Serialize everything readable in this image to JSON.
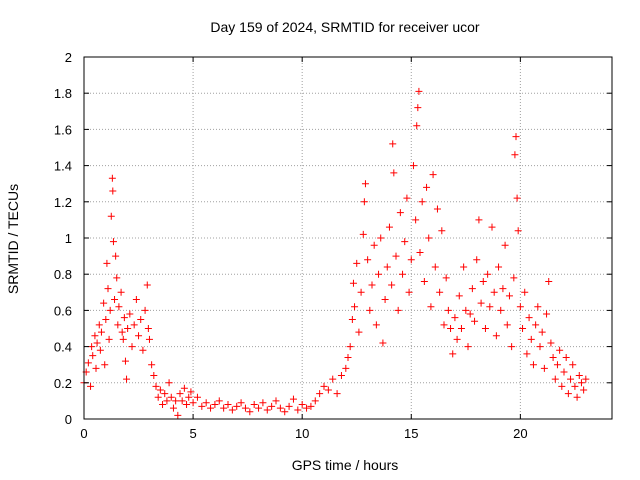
{
  "chart_data": {
    "type": "scatter",
    "title": "Day 159 of 2024, SRMTID for receiver ucor",
    "xlabel": "GPS time / hours",
    "ylabel": "SRMTID / TECUs",
    "xlim": [
      0,
      24.2
    ],
    "ylim": [
      0,
      2
    ],
    "x_ticks": [
      {
        "value": 0,
        "label": "0"
      },
      {
        "value": 5,
        "label": "5"
      },
      {
        "value": 10,
        "label": "10"
      },
      {
        "value": 15,
        "label": "15"
      },
      {
        "value": 20,
        "label": "20"
      }
    ],
    "y_ticks": [
      {
        "value": 0,
        "label": "0"
      },
      {
        "value": 0.2,
        "label": "0.2"
      },
      {
        "value": 0.4,
        "label": "0.4"
      },
      {
        "value": 0.6,
        "label": "0.6"
      },
      {
        "value": 0.8,
        "label": "0.8"
      },
      {
        "value": 1,
        "label": "1"
      },
      {
        "value": 1.2,
        "label": "1.2"
      },
      {
        "value": 1.4,
        "label": "1.4"
      },
      {
        "value": 1.6,
        "label": "1.6"
      },
      {
        "value": 1.8,
        "label": "1.8"
      },
      {
        "value": 2,
        "label": "2"
      }
    ],
    "grid": true,
    "marker": "+",
    "color": "#ff0000",
    "series": [
      {
        "name": "SRMTID",
        "points": [
          [
            0.0,
            0.2
          ],
          [
            0.1,
            0.26
          ],
          [
            0.2,
            0.31
          ],
          [
            0.3,
            0.18
          ],
          [
            0.35,
            0.4
          ],
          [
            0.4,
            0.35
          ],
          [
            0.5,
            0.46
          ],
          [
            0.55,
            0.28
          ],
          [
            0.6,
            0.42
          ],
          [
            0.7,
            0.52
          ],
          [
            0.75,
            0.38
          ],
          [
            0.8,
            0.48
          ],
          [
            0.9,
            0.64
          ],
          [
            0.95,
            0.3
          ],
          [
            1.0,
            0.55
          ],
          [
            1.05,
            0.86
          ],
          [
            1.1,
            0.72
          ],
          [
            1.15,
            0.44
          ],
          [
            1.2,
            0.6
          ],
          [
            1.25,
            1.12
          ],
          [
            1.3,
            1.33
          ],
          [
            1.32,
            1.26
          ],
          [
            1.35,
            0.98
          ],
          [
            1.4,
            0.66
          ],
          [
            1.45,
            0.9
          ],
          [
            1.5,
            0.78
          ],
          [
            1.55,
            0.52
          ],
          [
            1.6,
            0.62
          ],
          [
            1.7,
            0.7
          ],
          [
            1.75,
            0.48
          ],
          [
            1.8,
            0.44
          ],
          [
            1.85,
            0.56
          ],
          [
            1.9,
            0.32
          ],
          [
            1.95,
            0.22
          ],
          [
            2.0,
            0.5
          ],
          [
            2.1,
            0.58
          ],
          [
            2.2,
            0.4
          ],
          [
            2.3,
            0.52
          ],
          [
            2.4,
            0.66
          ],
          [
            2.5,
            0.46
          ],
          [
            2.6,
            0.55
          ],
          [
            2.7,
            0.38
          ],
          [
            2.8,
            0.6
          ],
          [
            2.9,
            0.74
          ],
          [
            2.95,
            0.5
          ],
          [
            3.0,
            0.44
          ],
          [
            3.1,
            0.3
          ],
          [
            3.2,
            0.24
          ],
          [
            3.3,
            0.18
          ],
          [
            3.4,
            0.12
          ],
          [
            3.5,
            0.16
          ],
          [
            3.6,
            0.08
          ],
          [
            3.7,
            0.14
          ],
          [
            3.8,
            0.1
          ],
          [
            3.9,
            0.2
          ],
          [
            4.0,
            0.12
          ],
          [
            4.1,
            0.06
          ],
          [
            4.2,
            0.1
          ],
          [
            4.3,
            0.02
          ],
          [
            4.4,
            0.14
          ],
          [
            4.5,
            0.1
          ],
          [
            4.6,
            0.17
          ],
          [
            4.7,
            0.08
          ],
          [
            4.8,
            0.12
          ],
          [
            4.9,
            0.15
          ],
          [
            5.0,
            0.09
          ],
          [
            5.2,
            0.12
          ],
          [
            5.4,
            0.07
          ],
          [
            5.6,
            0.09
          ],
          [
            5.8,
            0.06
          ],
          [
            6.0,
            0.08
          ],
          [
            6.2,
            0.1
          ],
          [
            6.4,
            0.06
          ],
          [
            6.6,
            0.08
          ],
          [
            6.8,
            0.05
          ],
          [
            7.0,
            0.07
          ],
          [
            7.2,
            0.09
          ],
          [
            7.4,
            0.06
          ],
          [
            7.6,
            0.04
          ],
          [
            7.8,
            0.08
          ],
          [
            8.0,
            0.06
          ],
          [
            8.2,
            0.09
          ],
          [
            8.4,
            0.05
          ],
          [
            8.6,
            0.07
          ],
          [
            8.8,
            0.1
          ],
          [
            9.0,
            0.06
          ],
          [
            9.2,
            0.04
          ],
          [
            9.4,
            0.07
          ],
          [
            9.6,
            0.11
          ],
          [
            9.8,
            0.05
          ],
          [
            10.0,
            0.08
          ],
          [
            10.2,
            0.06
          ],
          [
            10.4,
            0.07
          ],
          [
            10.6,
            0.1
          ],
          [
            10.8,
            0.14
          ],
          [
            11.0,
            0.18
          ],
          [
            11.2,
            0.16
          ],
          [
            11.4,
            0.22
          ],
          [
            11.6,
            0.14
          ],
          [
            11.8,
            0.24
          ],
          [
            12.0,
            0.28
          ],
          [
            12.1,
            0.34
          ],
          [
            12.2,
            0.4
          ],
          [
            12.3,
            0.55
          ],
          [
            12.35,
            0.75
          ],
          [
            12.4,
            0.62
          ],
          [
            12.5,
            0.86
          ],
          [
            12.6,
            0.48
          ],
          [
            12.7,
            0.7
          ],
          [
            12.8,
            1.02
          ],
          [
            12.85,
            1.2
          ],
          [
            12.9,
            1.3
          ],
          [
            13.0,
            0.88
          ],
          [
            13.1,
            0.6
          ],
          [
            13.2,
            0.74
          ],
          [
            13.3,
            0.96
          ],
          [
            13.4,
            0.52
          ],
          [
            13.5,
            0.8
          ],
          [
            13.6,
            1.0
          ],
          [
            13.7,
            0.42
          ],
          [
            13.8,
            0.66
          ],
          [
            13.9,
            0.84
          ],
          [
            14.0,
            1.06
          ],
          [
            14.1,
            0.74
          ],
          [
            14.15,
            1.52
          ],
          [
            14.2,
            1.36
          ],
          [
            14.3,
            0.9
          ],
          [
            14.4,
            0.6
          ],
          [
            14.5,
            1.14
          ],
          [
            14.6,
            0.8
          ],
          [
            14.7,
            0.98
          ],
          [
            14.8,
            1.22
          ],
          [
            14.9,
            0.7
          ],
          [
            15.0,
            0.88
          ],
          [
            15.1,
            1.4
          ],
          [
            15.2,
            1.1
          ],
          [
            15.25,
            1.62
          ],
          [
            15.3,
            1.72
          ],
          [
            15.35,
            1.81
          ],
          [
            15.4,
            0.92
          ],
          [
            15.5,
            1.2
          ],
          [
            15.6,
            0.76
          ],
          [
            15.7,
            1.28
          ],
          [
            15.8,
            1.0
          ],
          [
            15.9,
            0.62
          ],
          [
            16.0,
            1.35
          ],
          [
            16.1,
            0.84
          ],
          [
            16.2,
            1.16
          ],
          [
            16.3,
            0.7
          ],
          [
            16.4,
            1.04
          ],
          [
            16.5,
            0.52
          ],
          [
            16.6,
            0.78
          ],
          [
            16.7,
            0.6
          ],
          [
            16.8,
            0.5
          ],
          [
            16.9,
            0.36
          ],
          [
            17.0,
            0.56
          ],
          [
            17.1,
            0.44
          ],
          [
            17.2,
            0.68
          ],
          [
            17.3,
            0.5
          ],
          [
            17.4,
            0.84
          ],
          [
            17.5,
            0.6
          ],
          [
            17.6,
            0.4
          ],
          [
            17.7,
            0.58
          ],
          [
            17.8,
            0.72
          ],
          [
            17.9,
            0.54
          ],
          [
            18.0,
            0.88
          ],
          [
            18.1,
            1.1
          ],
          [
            18.2,
            0.64
          ],
          [
            18.3,
            0.76
          ],
          [
            18.4,
            0.5
          ],
          [
            18.5,
            0.8
          ],
          [
            18.6,
            0.62
          ],
          [
            18.7,
            1.06
          ],
          [
            18.8,
            0.7
          ],
          [
            18.9,
            0.46
          ],
          [
            19.0,
            0.84
          ],
          [
            19.1,
            0.6
          ],
          [
            19.2,
            0.72
          ],
          [
            19.3,
            0.96
          ],
          [
            19.4,
            0.52
          ],
          [
            19.5,
            0.68
          ],
          [
            19.6,
            0.4
          ],
          [
            19.7,
            0.78
          ],
          [
            19.75,
            1.46
          ],
          [
            19.8,
            1.56
          ],
          [
            19.85,
            1.22
          ],
          [
            19.9,
            1.04
          ],
          [
            20.0,
            0.62
          ],
          [
            20.1,
            0.5
          ],
          [
            20.2,
            0.7
          ],
          [
            20.3,
            0.36
          ],
          [
            20.4,
            0.56
          ],
          [
            20.5,
            0.44
          ],
          [
            20.6,
            0.3
          ],
          [
            20.7,
            0.52
          ],
          [
            20.8,
            0.62
          ],
          [
            20.9,
            0.4
          ],
          [
            21.0,
            0.48
          ],
          [
            21.1,
            0.28
          ],
          [
            21.2,
            0.58
          ],
          [
            21.3,
            0.76
          ],
          [
            21.4,
            0.42
          ],
          [
            21.5,
            0.34
          ],
          [
            21.6,
            0.22
          ],
          [
            21.7,
            0.3
          ],
          [
            21.8,
            0.38
          ],
          [
            21.9,
            0.18
          ],
          [
            22.0,
            0.26
          ],
          [
            22.1,
            0.34
          ],
          [
            22.2,
            0.14
          ],
          [
            22.3,
            0.22
          ],
          [
            22.4,
            0.3
          ],
          [
            22.5,
            0.18
          ],
          [
            22.6,
            0.12
          ],
          [
            22.7,
            0.24
          ],
          [
            22.8,
            0.2
          ],
          [
            22.9,
            0.16
          ],
          [
            23.0,
            0.22
          ]
        ]
      }
    ]
  }
}
